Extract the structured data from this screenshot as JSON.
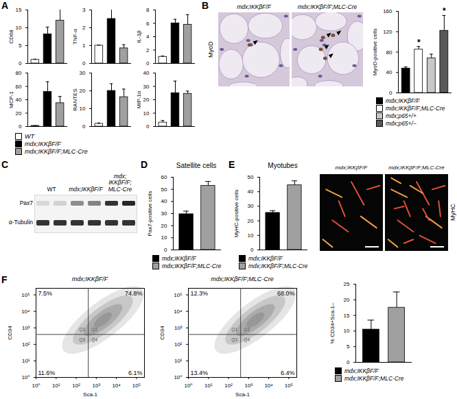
{
  "chart_data": [
    {
      "panel": "A",
      "type": "bar",
      "tick_labels": "y",
      "legend": "bottom",
      "categories": [
        "WT",
        "mdx;IKKβF/F",
        "mdx;IKKβF/F;MLC-Cre"
      ],
      "colors": [
        "#ffffff",
        "#000000",
        "#a0a0a0"
      ],
      "subplots": [
        {
          "ylabel": "CD68",
          "values": [
            1,
            8.2,
            12
          ],
          "errors": [
            0.2,
            2,
            3.8
          ],
          "ylim": [
            0,
            15
          ],
          "yticks": [
            0,
            5,
            10,
            15
          ]
        },
        {
          "ylabel": "TNF-α",
          "values": [
            1,
            2.5,
            0.85
          ],
          "errors": [
            0.03,
            0.6,
            0.2
          ],
          "ylim": [
            0,
            3
          ],
          "yticks": [
            0,
            1,
            2,
            3
          ]
        },
        {
          "ylabel": "IL-1β",
          "values": [
            1,
            6,
            5.8
          ],
          "errors": [
            0.1,
            0.6,
            1.5
          ],
          "ylim": [
            0,
            8
          ],
          "yticks": [
            0,
            2,
            4,
            6,
            8
          ]
        },
        {
          "ylabel": "MCP-1",
          "values": [
            1,
            52,
            35
          ],
          "errors": [
            0.3,
            15,
            10
          ],
          "ylim": [
            0,
            80
          ],
          "yticks": [
            0,
            20,
            40,
            60,
            80
          ]
        },
        {
          "ylabel": "RANTES",
          "values": [
            1.5,
            20,
            16.5
          ],
          "errors": [
            0.5,
            4,
            4.5
          ],
          "ylim": [
            0,
            30
          ],
          "yticks": [
            0,
            10,
            20,
            30
          ]
        },
        {
          "ylabel": "MIP-1α",
          "values": [
            3,
            25,
            24.5
          ],
          "errors": [
            1.5,
            9,
            2
          ],
          "ylim": [
            0,
            40
          ],
          "yticks": [
            0,
            10,
            20,
            30,
            40
          ]
        }
      ]
    },
    {
      "panel": "B",
      "type": "bar",
      "tick_labels": "y",
      "legend": "bottom",
      "ylabel": "MyoD-positive cells",
      "categories": [
        "mdx;IKKβF/F",
        "mdx;IKKβF/F;MLC-Cre",
        "mdx;p65+/+",
        "mdx;p65+/–"
      ],
      "colors": [
        "#000000",
        "#ffffff",
        "#c8c8c8",
        "#5a5a5a"
      ],
      "values": [
        48,
        85,
        68,
        122
      ],
      "errors": [
        3,
        6,
        8,
        30
      ],
      "significance": [
        null,
        "*",
        null,
        "*"
      ],
      "ylim": [
        0,
        160
      ],
      "yticks": [
        0,
        40,
        80,
        120,
        160
      ]
    },
    {
      "panel": "D",
      "type": "bar",
      "tick_labels": "y",
      "legend": "bottom",
      "title": "Satellite cells",
      "ylabel": "Pax7-positive cells",
      "categories": [
        "mdx;IKKβF/F",
        "mdx;IKKβF/F;MLC-Cre"
      ],
      "colors": [
        "#000000",
        "#a0a0a0"
      ],
      "values": [
        29.5,
        53
      ],
      "errors": [
        2.5,
        3.5
      ],
      "ylim": [
        0,
        60
      ],
      "yticks": [
        0,
        10,
        20,
        30,
        40,
        50,
        60
      ]
    },
    {
      "panel": "E",
      "type": "bar",
      "tick_labels": "y",
      "legend": "bottom",
      "title": "Myotubes",
      "ylabel": "MyHC-positive cells",
      "categories": [
        "mdx;IKKβF/F",
        "mdx;IKKβF/F;MLC-Cre"
      ],
      "colors": [
        "#000000",
        "#a0a0a0"
      ],
      "values": [
        25.5,
        44.5
      ],
      "errors": [
        1.5,
        3
      ],
      "ylim": [
        0,
        50
      ],
      "yticks": [
        0,
        10,
        20,
        30,
        40,
        50
      ]
    },
    {
      "panel": "F",
      "type": "flow_cytometry",
      "log": true,
      "xlabel": "Sca-1",
      "ylabel": "CD34",
      "xlim": [
        1,
        250000
      ],
      "ylim": [
        1,
        250000
      ],
      "xticks": [
        {
          "value": 1,
          "label": "10⁰"
        },
        {
          "value": 10,
          "label": "10¹"
        },
        {
          "value": 100,
          "label": "10²"
        },
        {
          "value": 1000,
          "label": "10³"
        },
        {
          "value": 10000,
          "label": "10⁴"
        },
        {
          "value": 100000,
          "label": "10⁵"
        }
      ],
      "yticks": [
        {
          "value": 1,
          "label": "10⁰"
        },
        {
          "value": 10,
          "label": "10¹"
        },
        {
          "value": 100,
          "label": "10²"
        },
        {
          "value": 1000,
          "label": "10³"
        },
        {
          "value": 10000,
          "label": "10⁴"
        },
        {
          "value": 100000,
          "label": "10⁵"
        }
      ],
      "gate": [
        400,
        400
      ],
      "plots": [
        {
          "title": "mdx;IKKβF/F",
          "quadrants": [
            {
              "name": "Q1",
              "value": 7.5,
              "label": "7.5%"
            },
            {
              "name": "Q2",
              "value": 74.8,
              "label": "74.8%"
            },
            {
              "name": "Q3",
              "value": 11.6,
              "label": "11.6%"
            },
            {
              "name": "Q4",
              "value": 6.1,
              "label": "6.1%"
            }
          ]
        },
        {
          "title": "mdx;IKKβF/F;MLC-Cre",
          "quadrants": [
            {
              "name": "Q1",
              "value": 12.3,
              "label": "12.3%"
            },
            {
              "name": "Q2",
              "value": 68.0,
              "label": "68.0%"
            },
            {
              "name": "Q3",
              "value": 13.4,
              "label": "13.4%"
            },
            {
              "name": "Q4",
              "value": 6.4,
              "label": "6.4%"
            }
          ]
        }
      ]
    },
    {
      "panel": "F",
      "type": "bar",
      "tick_labels": "y",
      "legend": "bottom",
      "ylabel": "% CD34+Sca-1–",
      "categories": [
        "mdx;IKKβF/F",
        "mdx;IKKβF/F;MLC-Cre"
      ],
      "colors": [
        "#000000",
        "#a0a0a0"
      ],
      "values": [
        10.5,
        17.5
      ],
      "errors": [
        3,
        5
      ],
      "ylim": [
        0,
        25
      ],
      "yticks": [
        0,
        5,
        10,
        15,
        20,
        25
      ]
    }
  ],
  "images": [
    {
      "panel": "B",
      "type": "micrograph",
      "stain": "MyoD",
      "titles": [
        "mdx;IKKβF/F",
        "mdx;IKKβF/F;MLC-Cre"
      ]
    },
    {
      "panel": "C",
      "type": "western_blot",
      "lanes": [
        "WT",
        "mdx;IKKβF/F",
        "mdx;IKKβF/F;MLC-Cre"
      ],
      "bands": [
        "Pax7",
        "α-Tubulin"
      ]
    },
    {
      "panel": "E",
      "type": "micrograph",
      "stain": "MyHC",
      "titles": [
        "mdx;IKKβF/F",
        "mdx;IKKβF/F;MLC-Cre"
      ]
    }
  ]
}
